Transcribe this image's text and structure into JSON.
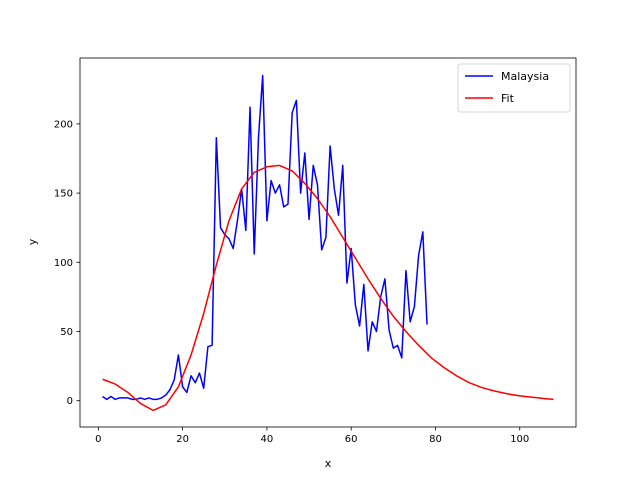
{
  "chart_data": {
    "type": "line",
    "title": "",
    "xlabel": "x",
    "ylabel": "y",
    "xlim": [
      -4.35,
      113.35
    ],
    "ylim": [
      -19.0,
      247.6
    ],
    "xticks": [
      0,
      20,
      40,
      60,
      80,
      100
    ],
    "yticks": [
      0,
      50,
      100,
      150,
      200
    ],
    "grid": false,
    "legend": "top-right",
    "series": [
      {
        "name": "Malaysia",
        "color": "#0000ff",
        "x": [
          1,
          2,
          3,
          4,
          5,
          6,
          7,
          8,
          9,
          10,
          11,
          12,
          13,
          14,
          15,
          16,
          17,
          18,
          19,
          20,
          21,
          22,
          23,
          24,
          25,
          26,
          27,
          28,
          29,
          30,
          31,
          32,
          33,
          34,
          35,
          36,
          37,
          38,
          39,
          40,
          41,
          42,
          43,
          44,
          45,
          46,
          47,
          48,
          49,
          50,
          51,
          52,
          53,
          54,
          55,
          56,
          57,
          58,
          59,
          60,
          61,
          62,
          63,
          64,
          65,
          66,
          67,
          68,
          69,
          70,
          71,
          72,
          73,
          74,
          75,
          76,
          77,
          78
        ],
        "y": [
          3,
          1,
          3,
          1,
          2,
          2,
          2,
          1,
          1,
          2,
          1,
          2,
          1,
          1,
          2,
          4,
          8,
          15,
          33,
          10,
          6,
          18,
          13,
          20,
          9,
          39,
          40,
          190,
          125,
          120,
          117,
          110,
          130,
          153,
          123,
          212,
          106,
          190,
          235,
          130,
          159,
          150,
          156,
          140,
          142,
          208,
          217,
          150,
          179,
          131,
          170,
          156,
          109,
          118,
          184,
          153,
          134,
          170,
          85,
          110,
          69,
          54,
          84,
          36,
          57,
          50,
          75,
          88,
          51,
          38,
          40,
          31,
          94,
          57,
          68,
          105,
          122,
          55
        ]
      },
      {
        "name": "Fit",
        "color": "#ff0000",
        "x": [
          1,
          4,
          7,
          10,
          13,
          16,
          19,
          22,
          25,
          28,
          31,
          34,
          37,
          40,
          43,
          46,
          49,
          52,
          55,
          58,
          61,
          64,
          67,
          70,
          73,
          76,
          79,
          82,
          85,
          88,
          91,
          94,
          97,
          100,
          103,
          106,
          108
        ],
        "y": [
          15.5,
          12,
          6,
          -2,
          -7,
          -3,
          10,
          33,
          63,
          98,
          130,
          153,
          165,
          169,
          170,
          166,
          157,
          146,
          133,
          118,
          103,
          88,
          74,
          61,
          50,
          40,
          31,
          24,
          18,
          13,
          9.5,
          7,
          5,
          3.5,
          2.5,
          1.5,
          1
        ]
      }
    ]
  }
}
